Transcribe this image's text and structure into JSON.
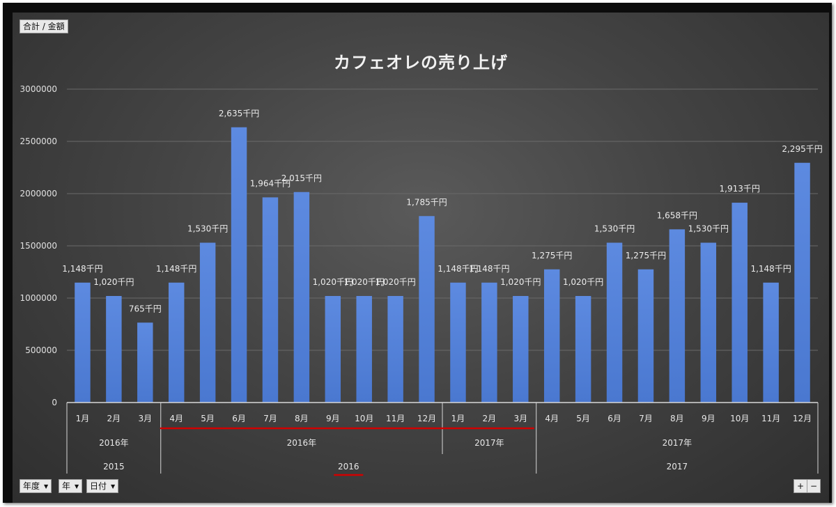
{
  "field_button": "合計 / 金額",
  "filters": [
    {
      "label": "年度"
    },
    {
      "label": "年"
    },
    {
      "label": "日付"
    }
  ],
  "zoom": {
    "plus": "+",
    "minus": "−"
  },
  "colors": {
    "bar": "#4a78d0",
    "bar_light": "#5d8ae0",
    "annotation": "#d10000"
  },
  "chart_data": {
    "type": "bar",
    "title": "カフェオレの売り上げ",
    "ylim": [
      0,
      3000000
    ],
    "yticks": [
      "0",
      "500000",
      "1000000",
      "1500000",
      "2000000",
      "2500000",
      "3000000"
    ],
    "legend": "none",
    "grid": true,
    "categories": [
      "1月",
      "2月",
      "3月",
      "4月",
      "5月",
      "6月",
      "7月",
      "8月",
      "9月",
      "10月",
      "11月",
      "12月",
      "1月",
      "2月",
      "3月",
      "4月",
      "5月",
      "6月",
      "7月",
      "8月",
      "9月",
      "10月",
      "11月",
      "12月"
    ],
    "values": [
      1148000,
      1020000,
      765000,
      1148000,
      1530000,
      2635000,
      1964000,
      2015000,
      1020000,
      1020000,
      1020000,
      1785000,
      1148000,
      1148000,
      1020000,
      1275000,
      1020000,
      1530000,
      1275000,
      1658000,
      1530000,
      1913000,
      1148000,
      2295000
    ],
    "data_labels": [
      "1,148千円",
      "1,020千円",
      "765千円",
      "1,148千円",
      "1,530千円",
      "2,635千円",
      "1,964千円",
      "2,015千円",
      "1,020千円",
      "1,020千円",
      "1,020千円",
      "1,785千円",
      "1,148千円",
      "1,148千円",
      "1,020千円",
      "1,275千円",
      "1,020千円",
      "1,530千円",
      "1,275千円",
      "1,658千円",
      "1,530千円",
      "1,913千円",
      "1,148千円",
      "2,295千円"
    ],
    "level2_groups": [
      {
        "label": "2016年",
        "count": 3
      },
      {
        "label": "2016年",
        "count": 9
      },
      {
        "label": "2017年",
        "count": 3
      },
      {
        "label": "2017年",
        "count": 9
      }
    ],
    "level3_groups": [
      {
        "label": "2015",
        "count": 3
      },
      {
        "label": "2016",
        "count": 12
      },
      {
        "label": "2017",
        "count": 9
      }
    ]
  }
}
